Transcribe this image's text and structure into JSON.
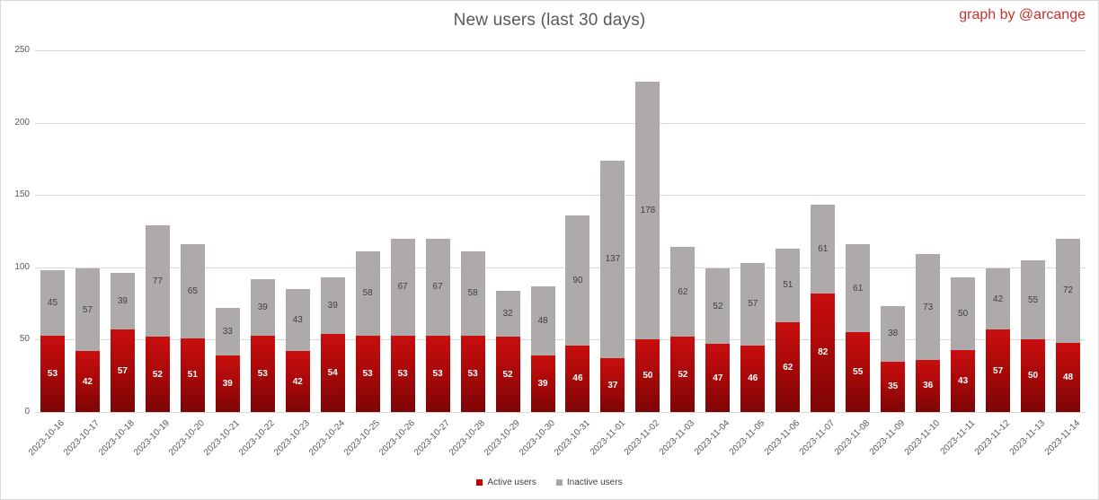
{
  "title": "New users (last 30 days)",
  "credit": "graph by @arcange",
  "colors": {
    "active_top": "#c90e0e",
    "active_mid": "#a40808",
    "active_bottom": "#7c0506",
    "active_legend": "#c00000",
    "inactive": "#aeaaaa",
    "inactive_legend": "#a6a6a6",
    "gridline": "#d9d9d9",
    "axis_text": "#595959",
    "title_text": "#595959",
    "credit_text": "#c9302c",
    "value_label_dark": "#404040",
    "value_label_light": "#ffffff"
  },
  "legend": [
    {
      "label": "Active users",
      "swatch": "#c00000"
    },
    {
      "label": "Inactive users",
      "swatch": "#a6a6a6"
    }
  ],
  "y_axis": {
    "ticks": [
      0,
      50,
      100,
      150,
      200,
      250
    ],
    "max": 250
  },
  "chart_data": {
    "type": "bar",
    "stacked": true,
    "title": "New users (last 30 days)",
    "xlabel": "",
    "ylabel": "",
    "ylim": [
      0,
      250
    ],
    "grid": true,
    "legend_position": "bottom",
    "categories": [
      "2023-10-16",
      "2023-10-17",
      "2023-10-18",
      "2023-10-19",
      "2023-10-20",
      "2023-10-21",
      "2023-10-22",
      "2023-10-23",
      "2023-10-24",
      "2023-10-25",
      "2023-10-26",
      "2023-10-27",
      "2023-10-28",
      "2023-10-29",
      "2023-10-30",
      "2023-10-31",
      "2023-11-01",
      "2023-11-02",
      "2023-11-03",
      "2023-11-04",
      "2023-11-05",
      "2023-11-06",
      "2023-11-07",
      "2023-11-08",
      "2023-11-09",
      "2023-11-10",
      "2023-11-11",
      "2023-11-12",
      "2023-11-13",
      "2023-11-14"
    ],
    "series": [
      {
        "name": "Active users",
        "color": "#c00000",
        "values": [
          53,
          42,
          57,
          52,
          51,
          39,
          53,
          42,
          54,
          53,
          53,
          53,
          53,
          52,
          39,
          46,
          37,
          50,
          52,
          47,
          46,
          62,
          82,
          55,
          35,
          36,
          43,
          57,
          50,
          48
        ]
      },
      {
        "name": "Inactive users",
        "color": "#a6a6a6",
        "values": [
          45,
          57,
          39,
          77,
          65,
          33,
          39,
          43,
          39,
          58,
          67,
          67,
          58,
          32,
          48,
          90,
          137,
          178,
          62,
          52,
          57,
          51,
          61,
          61,
          38,
          73,
          50,
          42,
          55,
          72
        ]
      }
    ]
  }
}
